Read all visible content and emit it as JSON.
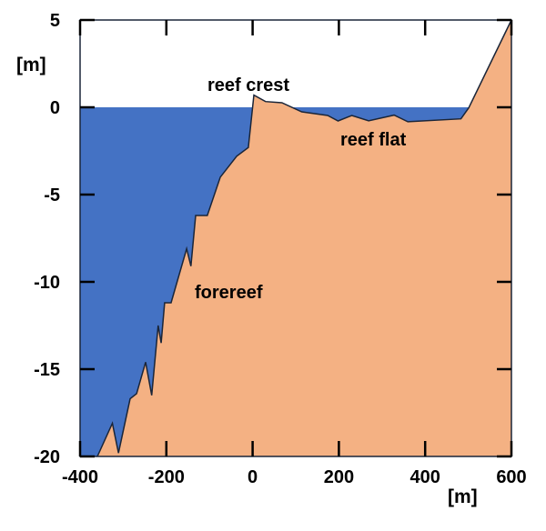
{
  "chart_data": {
    "type": "area",
    "xlabel": "[m]",
    "ylabel": "[m]",
    "xlim": [
      -400,
      600
    ],
    "ylim": [
      -20,
      5
    ],
    "xticks": [
      -400,
      -200,
      0,
      200,
      400,
      600
    ],
    "yticks": [
      5,
      0,
      -5,
      -10,
      -15,
      -20
    ],
    "grid": false,
    "sea_level": 0,
    "colors": {
      "water": "#4472c4",
      "reef": "#f4b183",
      "outline": "#1a2538"
    },
    "profile": [
      [
        -360,
        -20
      ],
      [
        -325,
        -18.1
      ],
      [
        -311,
        -19.8
      ],
      [
        -284,
        -16.7
      ],
      [
        -269,
        -16.4
      ],
      [
        -248,
        -14.6
      ],
      [
        -234,
        -16.5
      ],
      [
        -219,
        -12.5
      ],
      [
        -212,
        -13.5
      ],
      [
        -204,
        -11.2
      ],
      [
        -189,
        -11.2
      ],
      [
        -153,
        -8.1
      ],
      [
        -143,
        -9.1
      ],
      [
        -132,
        -6.2
      ],
      [
        -105,
        -6.2
      ],
      [
        -75,
        -4.0
      ],
      [
        -37,
        -2.8
      ],
      [
        -10,
        -2.3
      ],
      [
        3,
        0.7
      ],
      [
        30,
        0.33
      ],
      [
        68,
        0.26
      ],
      [
        114,
        -0.26
      ],
      [
        174,
        -0.47
      ],
      [
        198,
        -0.78
      ],
      [
        230,
        -0.47
      ],
      [
        269,
        -0.77
      ],
      [
        328,
        -0.45
      ],
      [
        360,
        -0.83
      ],
      [
        483,
        -0.66
      ],
      [
        501,
        -0.03
      ],
      [
        600,
        5
      ]
    ],
    "annotations": [
      {
        "text": "reef crest",
        "x": 30,
        "y": 1.2
      },
      {
        "text": "reef flat",
        "x": 270,
        "y": -1.9
      },
      {
        "text": "forereef",
        "x": -95,
        "y": -10.8
      }
    ]
  }
}
